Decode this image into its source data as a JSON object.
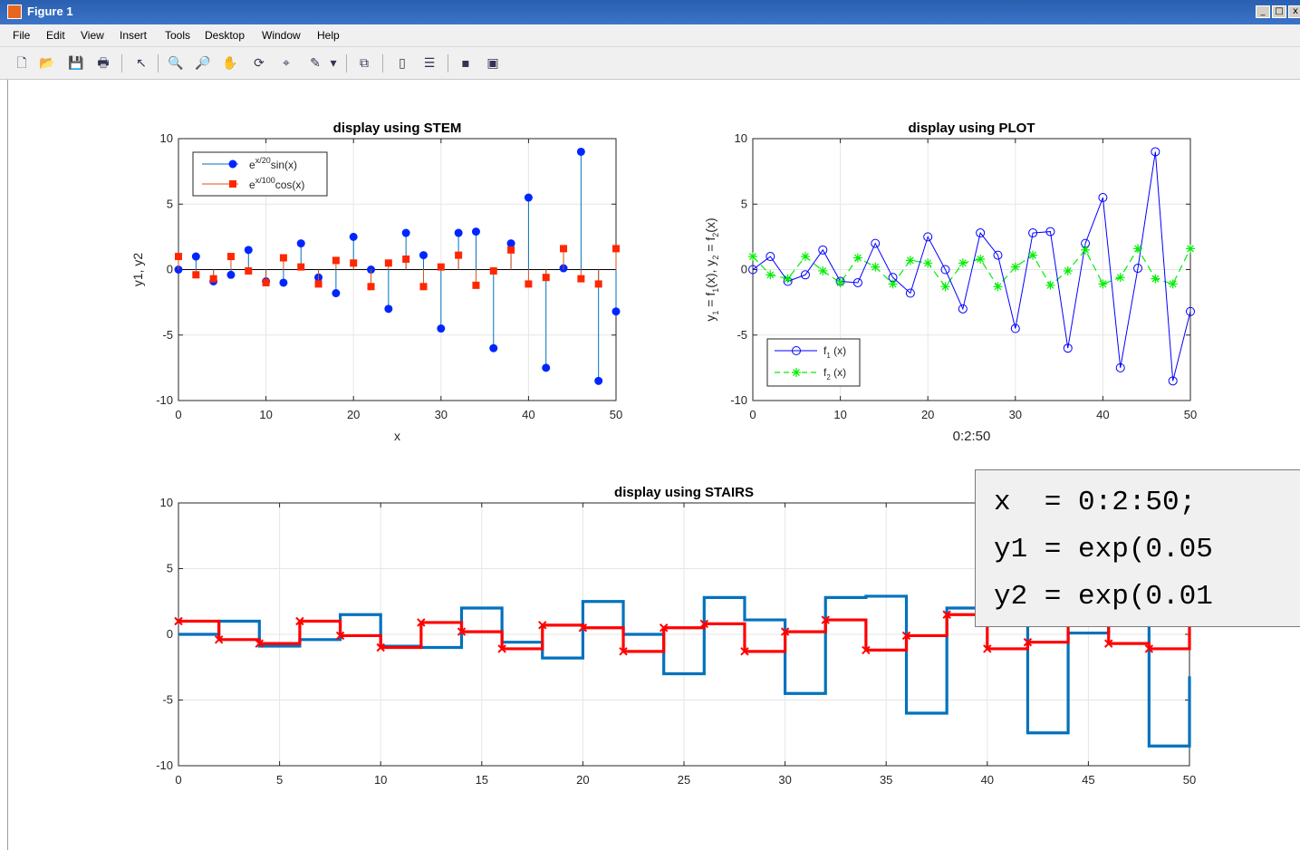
{
  "window": {
    "title": "Figure 1",
    "minimize": "_",
    "maximize": "□",
    "close": "x"
  },
  "menu": [
    "File",
    "Edit",
    "View",
    "Insert",
    "Tools",
    "Desktop",
    "Window",
    "Help"
  ],
  "toolbar": [
    {
      "name": "new-figure-icon",
      "glyph": "🗋"
    },
    {
      "name": "open-file-icon",
      "glyph": "📂"
    },
    {
      "name": "save-icon",
      "glyph": "💾"
    },
    {
      "name": "print-icon",
      "glyph": "🖶"
    },
    {
      "name": "edit-plot-arrow-icon",
      "glyph": "↖"
    },
    {
      "name": "zoom-in-icon",
      "glyph": "🔍"
    },
    {
      "name": "zoom-out-icon",
      "glyph": "🔎"
    },
    {
      "name": "pan-hand-icon",
      "glyph": "✋"
    },
    {
      "name": "rotate-3d-icon",
      "glyph": "⟳"
    },
    {
      "name": "data-cursor-icon",
      "glyph": "⌖"
    },
    {
      "name": "brush-icon",
      "glyph": "✎"
    },
    {
      "name": "brush-dropdown-icon",
      "glyph": "▾"
    },
    {
      "name": "link-plot-icon",
      "glyph": "⧉"
    },
    {
      "name": "colorbar-icon",
      "glyph": "▯"
    },
    {
      "name": "legend-icon",
      "glyph": "☰"
    },
    {
      "name": "hide-plot-tools-icon",
      "glyph": "▪"
    },
    {
      "name": "show-plot-tools-icon",
      "glyph": "▣"
    }
  ],
  "colors": {
    "stem1": "#0026ff",
    "stem2": "#ff2600",
    "plot1": "#0000ff",
    "plot2": "#00ee00",
    "stairs1": "#0072bd",
    "stairs2": "#ff0000",
    "axis": "#262626",
    "grid": "#e6e6e6"
  },
  "code_box": {
    "lines": [
      "x  = 0:2:50;",
      "y1 = exp(0.05",
      "y2 = exp(0.01"
    ]
  },
  "chart_data": [
    {
      "type": "stem",
      "title": "display using STEM",
      "xlabel": "x",
      "ylabel": "y1, y2",
      "xlim": [
        0,
        50
      ],
      "ylim": [
        -10,
        10
      ],
      "xticks": [
        0,
        10,
        20,
        30,
        40,
        50
      ],
      "yticks": [
        -10,
        -5,
        0,
        5,
        10
      ],
      "grid": true,
      "legend_position": "top-left",
      "legend": [
        {
          "base": "e",
          "sup": "x/20",
          "tail": "sin(x)"
        },
        {
          "base": "e",
          "sup": "x/100",
          "tail": "cos(x)"
        }
      ],
      "x": [
        0,
        2,
        4,
        6,
        8,
        10,
        12,
        14,
        16,
        18,
        20,
        22,
        24,
        26,
        28,
        30,
        32,
        34,
        36,
        38,
        40,
        42,
        44,
        46,
        48,
        50
      ],
      "series": [
        {
          "values": [
            0,
            1.0,
            -0.9,
            -0.4,
            1.5,
            -0.9,
            -1.0,
            2.0,
            -0.6,
            -1.8,
            2.5,
            0,
            -3.0,
            2.8,
            1.1,
            -4.5,
            2.8,
            2.9,
            -6.0,
            2.0,
            5.5,
            -7.5,
            0.1,
            9.0,
            -8.5,
            -3.2
          ]
        },
        {
          "values": [
            1.0,
            -0.4,
            -0.7,
            1.0,
            -0.1,
            -1.0,
            0.9,
            0.2,
            -1.1,
            0.7,
            0.5,
            -1.3,
            0.5,
            0.8,
            -1.3,
            0.2,
            1.1,
            -1.2,
            -0.1,
            1.5,
            -1.1,
            -0.6,
            1.6,
            -0.7,
            -1.1,
            1.6
          ]
        }
      ]
    },
    {
      "type": "line",
      "title": "display using PLOT",
      "xlabel": "0:2:50",
      "ylabel": "y_1 = f_1(x), y_2 = f_2(x)",
      "xlim": [
        0,
        50
      ],
      "ylim": [
        -10,
        10
      ],
      "xticks": [
        0,
        10,
        20,
        30,
        40,
        50
      ],
      "yticks": [
        -10,
        -5,
        0,
        5,
        10
      ],
      "grid": true,
      "legend_position": "bottom-left",
      "legend": [
        {
          "base": "f",
          "sub": "1",
          "tail": "(x)"
        },
        {
          "base": "f",
          "sub": "2",
          "tail": "(x)"
        }
      ],
      "x": [
        0,
        2,
        4,
        6,
        8,
        10,
        12,
        14,
        16,
        18,
        20,
        22,
        24,
        26,
        28,
        30,
        32,
        34,
        36,
        38,
        40,
        42,
        44,
        46,
        48,
        50
      ],
      "series": [
        {
          "values": [
            0,
            1.0,
            -0.9,
            -0.4,
            1.5,
            -0.9,
            -1.0,
            2.0,
            -0.6,
            -1.8,
            2.5,
            0,
            -3.0,
            2.8,
            1.1,
            -4.5,
            2.8,
            2.9,
            -6.0,
            2.0,
            5.5,
            -7.5,
            0.1,
            9.0,
            -8.5,
            -3.2
          ]
        },
        {
          "values": [
            1.0,
            -0.4,
            -0.7,
            1.0,
            -0.1,
            -1.0,
            0.9,
            0.2,
            -1.1,
            0.7,
            0.5,
            -1.3,
            0.5,
            0.8,
            -1.3,
            0.2,
            1.1,
            -1.2,
            -0.1,
            1.5,
            -1.1,
            -0.6,
            1.6,
            -0.7,
            -1.1,
            1.6
          ]
        }
      ]
    },
    {
      "type": "stairs",
      "title": "display using STAIRS",
      "xlabel": "",
      "ylabel": "",
      "xlim": [
        0,
        50
      ],
      "ylim": [
        -10,
        10
      ],
      "xticks": [
        0,
        5,
        10,
        15,
        20,
        25,
        30,
        35,
        40,
        45,
        50
      ],
      "yticks": [
        -10,
        -5,
        0,
        5,
        10
      ],
      "grid": true,
      "x": [
        0,
        2,
        4,
        6,
        8,
        10,
        12,
        14,
        16,
        18,
        20,
        22,
        24,
        26,
        28,
        30,
        32,
        34,
        36,
        38,
        40,
        42,
        44,
        46,
        48,
        50
      ],
      "series": [
        {
          "values": [
            0,
            1.0,
            -0.9,
            -0.4,
            1.5,
            -0.9,
            -1.0,
            2.0,
            -0.6,
            -1.8,
            2.5,
            0,
            -3.0,
            2.8,
            1.1,
            -4.5,
            2.8,
            2.9,
            -6.0,
            2.0,
            5.5,
            -7.5,
            0.1,
            9.0,
            -8.5,
            -3.2
          ]
        },
        {
          "values": [
            1.0,
            -0.4,
            -0.7,
            1.0,
            -0.1,
            -1.0,
            0.9,
            0.2,
            -1.1,
            0.7,
            0.5,
            -1.3,
            0.5,
            0.8,
            -1.3,
            0.2,
            1.1,
            -1.2,
            -0.1,
            1.5,
            -1.1,
            -0.6,
            1.6,
            -0.7,
            -1.1,
            1.6
          ]
        }
      ]
    }
  ]
}
